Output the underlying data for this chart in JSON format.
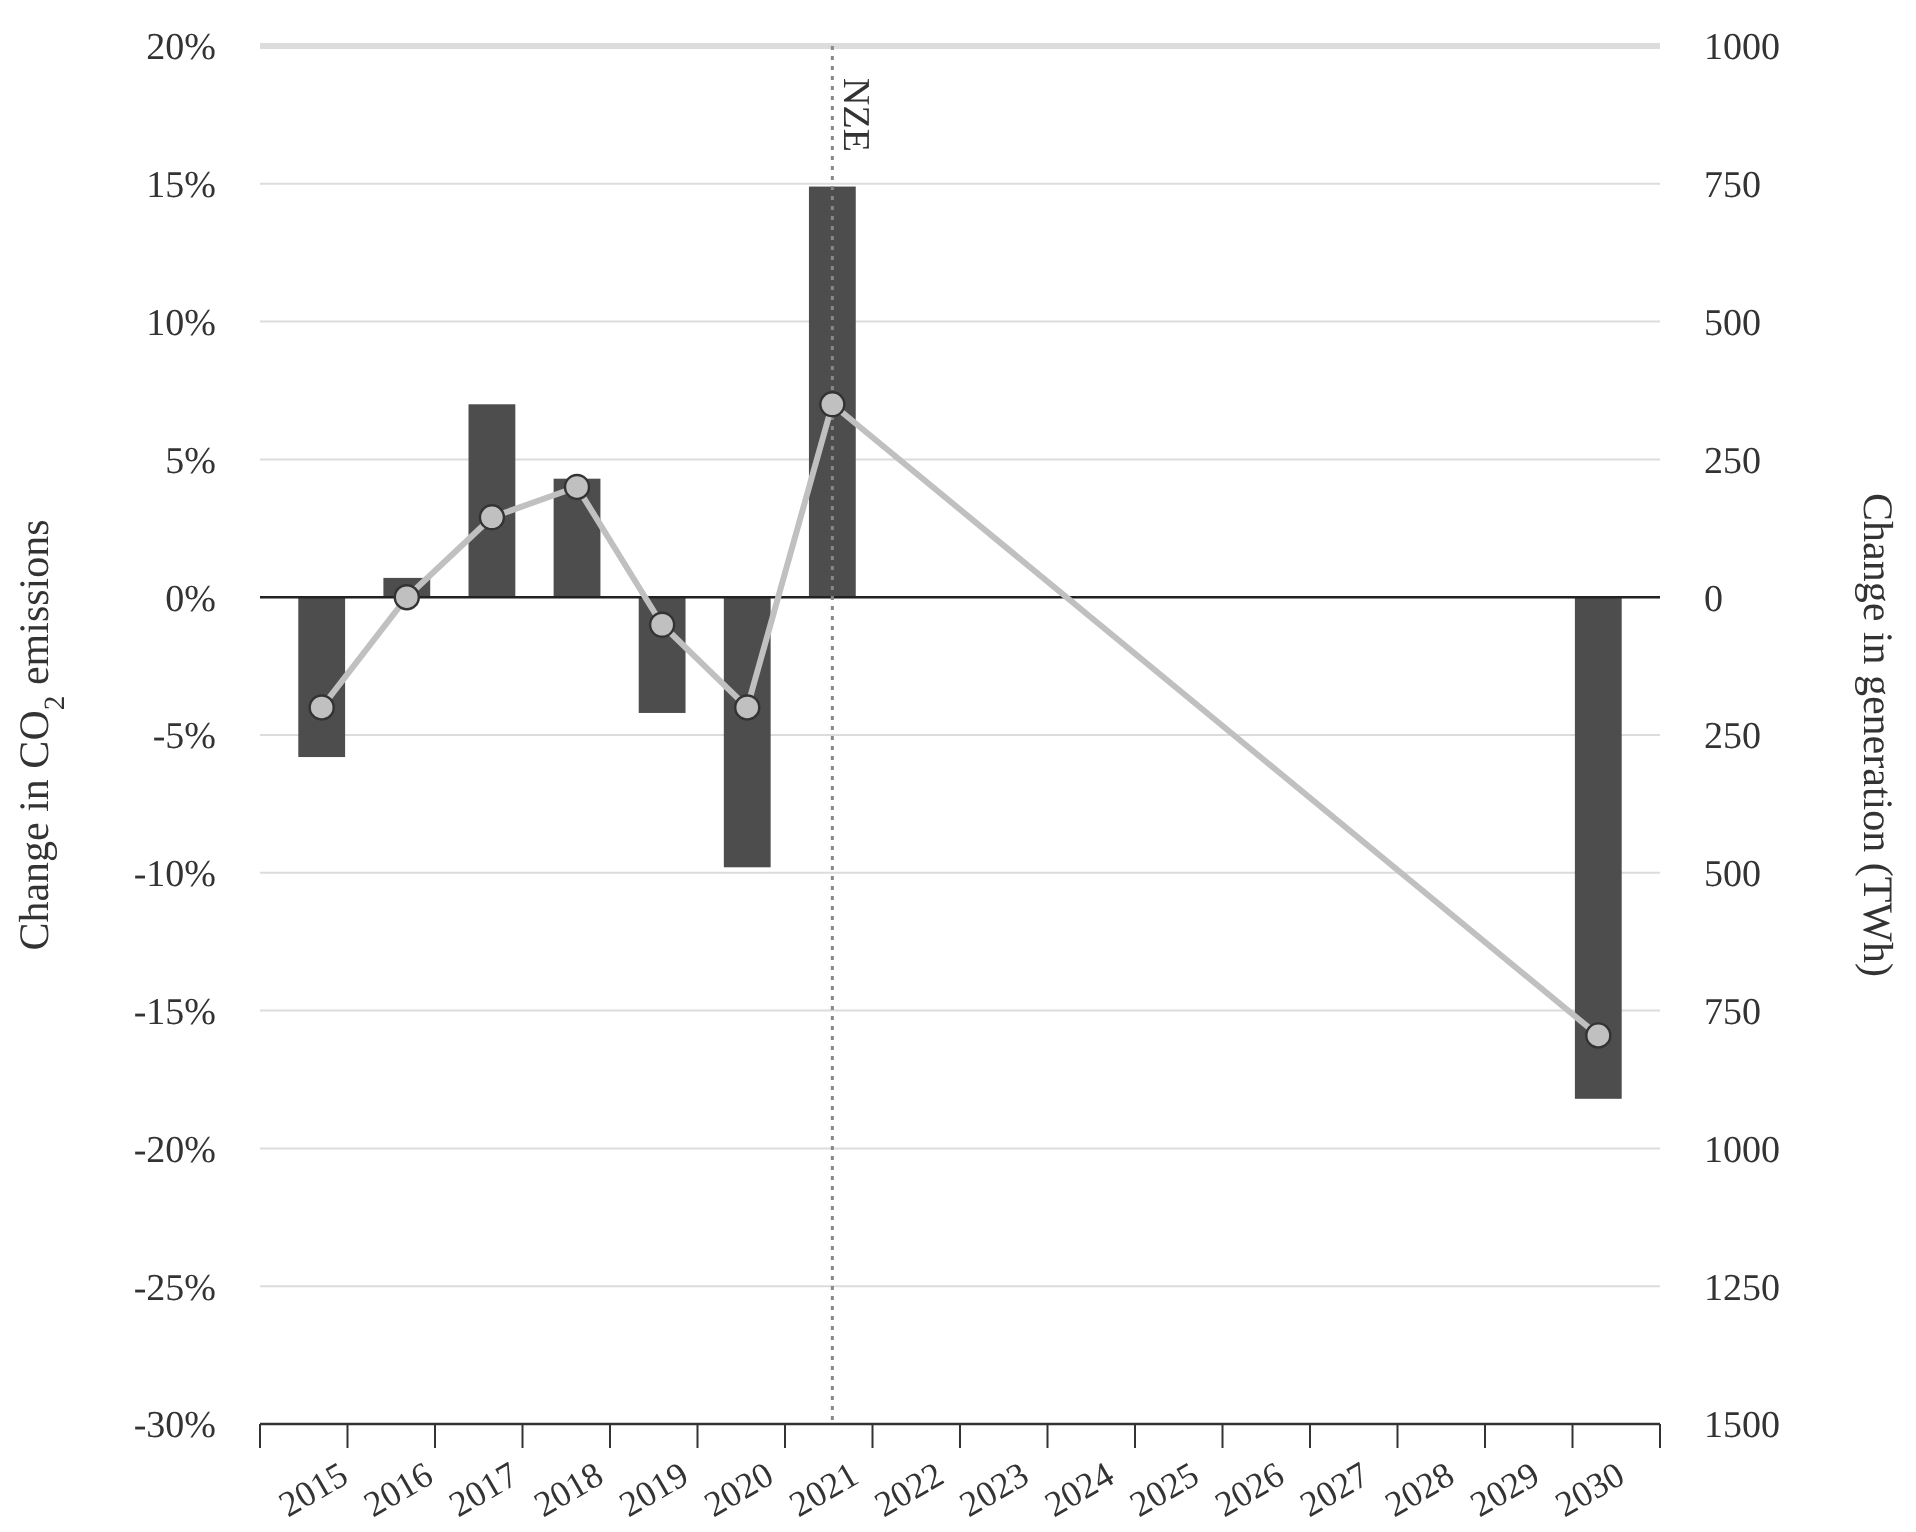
{
  "chart_data": {
    "type": "bar",
    "ylabel": "Change in CO$_{2}$ emissions",
    "y2label": "Change in generation (TWh)",
    "categories": [
      "2015",
      "2016",
      "2017",
      "2018",
      "2019",
      "2020",
      "2021",
      "2022",
      "2023",
      "2024",
      "2025",
      "2026",
      "2027",
      "2028",
      "2029",
      "2030"
    ],
    "series": [
      {
        "axis": "y2",
        "color": "#4d4d4d",
        "values": [
          -290,
          35,
          350,
          215,
          -210,
          -490,
          745,
          null,
          null,
          null,
          null,
          null,
          null,
          null,
          null,
          -910
        ]
      },
      {
        "type": "line",
        "axis": "y",
        "color": "#c0c0c0",
        "marker": "circle",
        "values": [
          -4.0,
          0.0,
          2.9,
          4.0,
          -1.0,
          -4.0,
          7.0,
          null,
          null,
          null,
          null,
          null,
          null,
          null,
          null,
          -15.9
        ]
      }
    ],
    "ylim": [
      -30,
      20
    ],
    "yticks": [
      {
        "value": -30,
        "label": "-30%"
      },
      {
        "value": -25,
        "label": "-25%"
      },
      {
        "value": -20,
        "label": "-20%"
      },
      {
        "value": -15,
        "label": "-15%"
      },
      {
        "value": -10,
        "label": "-10%"
      },
      {
        "value": -5,
        "label": "-5%"
      },
      {
        "value": 0,
        "label": "0%"
      },
      {
        "value": 5,
        "label": "5%"
      },
      {
        "value": 10,
        "label": "10%"
      },
      {
        "value": 15,
        "label": "15%"
      },
      {
        "value": 20,
        "label": "20%"
      }
    ],
    "y2lim": [
      -1500,
      1000
    ],
    "y2ticks": [
      {
        "value": -1500,
        "label": "1500"
      },
      {
        "value": -1250,
        "label": "1250"
      },
      {
        "value": -1000,
        "label": "1000"
      },
      {
        "value": -750,
        "label": "750"
      },
      {
        "value": -500,
        "label": "500"
      },
      {
        "value": -250,
        "label": "250"
      },
      0,
      250,
      500,
      750,
      1000
    ],
    "ref_lines": [
      {
        "axis": "x",
        "value": "2021",
        "label": "NZE",
        "color": "#888888",
        "line_style": "dotted"
      }
    ],
    "grid": "y"
  }
}
